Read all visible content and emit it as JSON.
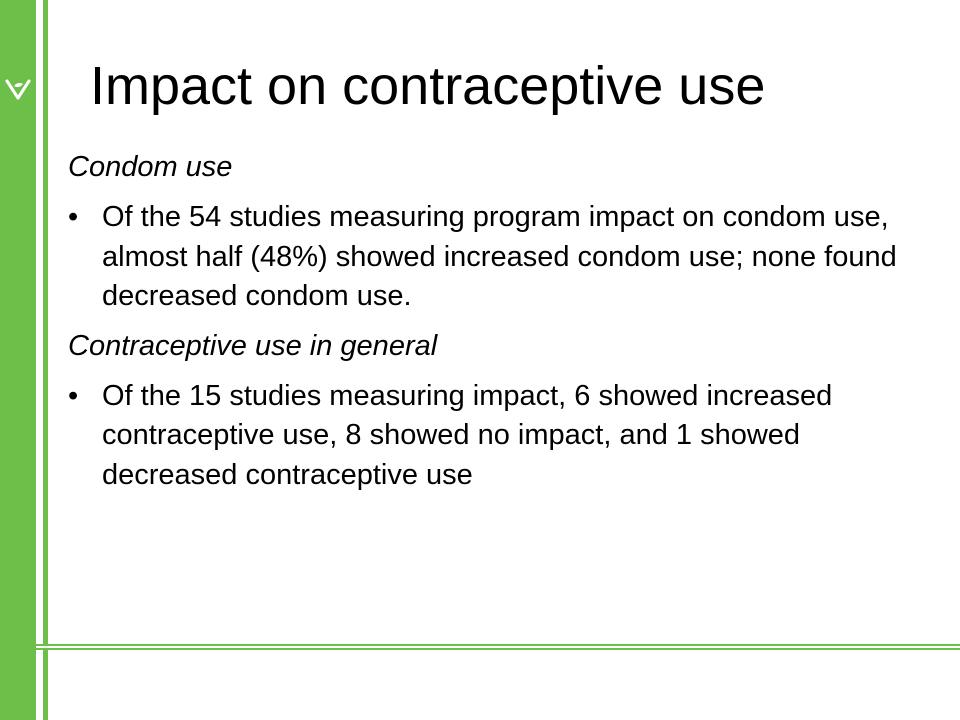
{
  "theme": {
    "accent": "#6CC04A",
    "rule_color": "#6CC04A",
    "text_color": "#000000",
    "background": "#FFFFFF"
  },
  "logo": {
    "icon": "heart-leaf-icon"
  },
  "slide": {
    "title": "Impact on contraceptive use",
    "sections": [
      {
        "heading": "Condom use",
        "bullet": "Of the 54 studies measuring program impact on condom use, almost half (48%) showed increased condom use; none found decreased condom use."
      },
      {
        "heading": "Contraceptive use in general",
        "bullet": "Of the 15 studies measuring impact, 6 showed increased contraceptive use, 8 showed no impact, and 1 showed decreased contraceptive use"
      }
    ],
    "bullet_glyph": "•"
  }
}
